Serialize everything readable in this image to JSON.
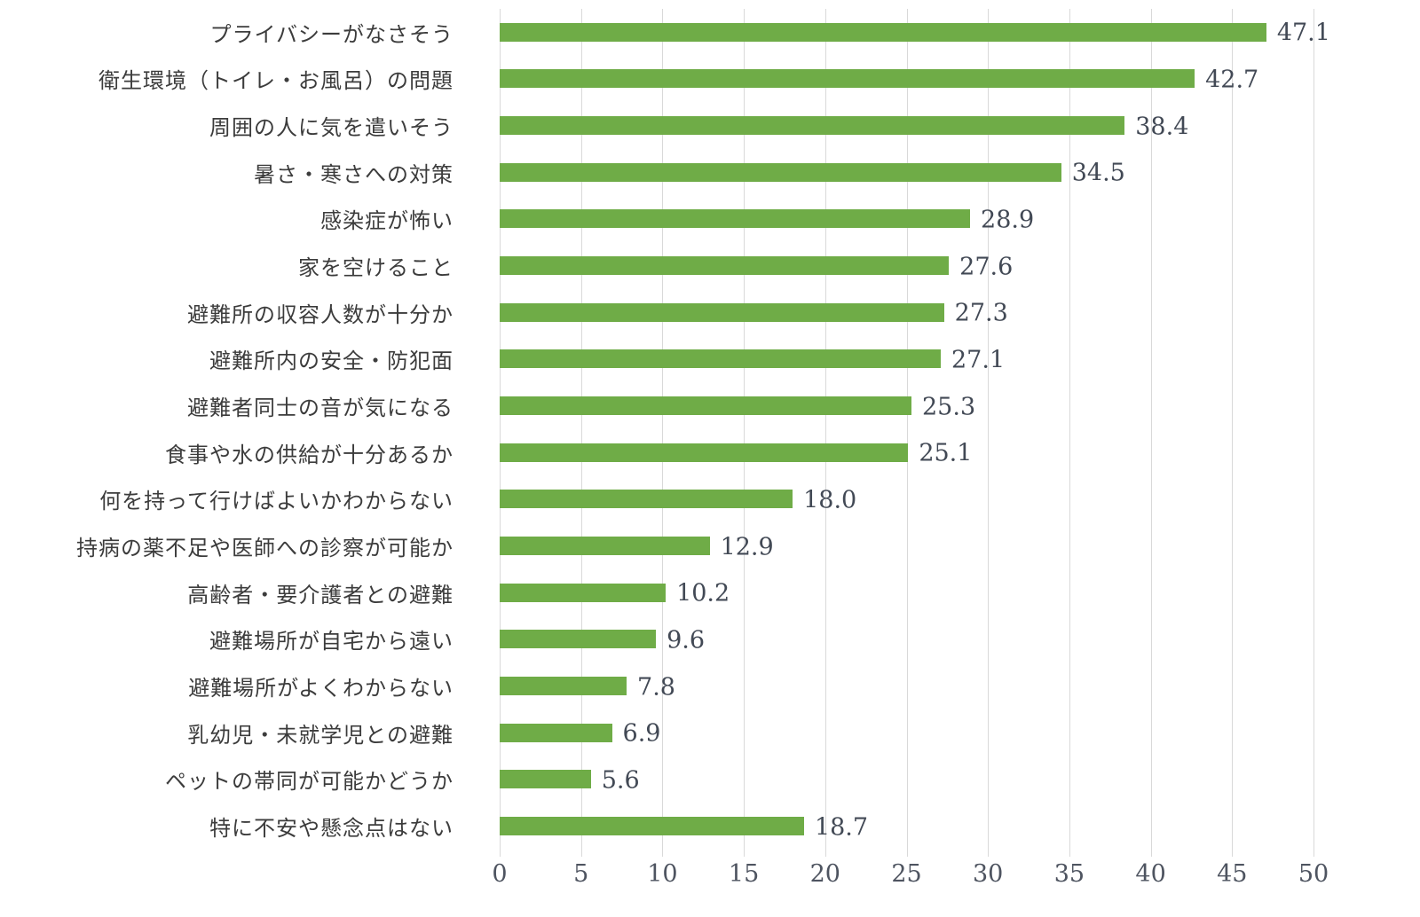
{
  "chart_data": {
    "type": "bar",
    "orientation": "horizontal",
    "title": "",
    "xlabel": "",
    "ylabel": "",
    "categories": [
      "プライバシーがなさそう",
      "衛生環境（トイレ・お風呂）の問題",
      "周囲の人に気を遣いそう",
      "暑さ・寒さへの対策",
      "感染症が怖い",
      "家を空けること",
      "避難所の収容人数が十分か",
      "避難所内の安全・防犯面",
      "避難者同士の音が気になる",
      "食事や水の供給が十分あるか",
      "何を持って行けばよいかわからない",
      "持病の薬不足や医師への診察が可能か",
      "高齢者・要介護者との避難",
      "避難場所が自宅から遠い",
      "避難場所がよくわからない",
      "乳幼児・未就学児との避難",
      "ペットの帯同が可能かどうか",
      "特に不安や懸念点はない"
    ],
    "values": [
      47.1,
      42.7,
      38.4,
      34.5,
      28.9,
      27.6,
      27.3,
      27.1,
      25.3,
      25.1,
      18.0,
      12.9,
      10.2,
      9.6,
      7.8,
      6.9,
      5.6,
      18.7
    ],
    "value_labels": [
      "47.1",
      "42.7",
      "38.4",
      "34.5",
      "28.9",
      "27.6",
      "27.3",
      "27.1",
      "25.3",
      "25.1",
      "18.0",
      "12.9",
      "10.2",
      "9.6",
      "7.8",
      "6.9",
      "5.6",
      "18.7"
    ],
    "xlim": [
      0,
      50
    ],
    "x_ticks": [
      0,
      5,
      10,
      15,
      20,
      25,
      30,
      35,
      40,
      45,
      50
    ],
    "grid": "vertical",
    "legend": "none",
    "colors": {
      "bar": "#6FAC47",
      "gridline": "#D9D9D9",
      "category_label": "#3C3C3C",
      "value_label": "#424955",
      "tick_label": "#4E5460",
      "background": "#FFFFFF"
    }
  }
}
